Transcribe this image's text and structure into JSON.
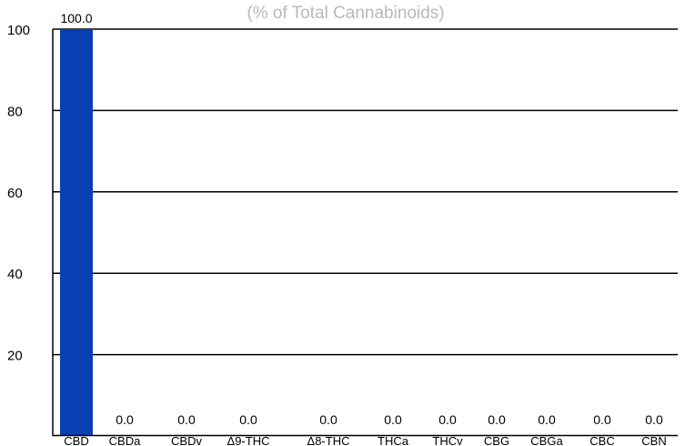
{
  "chart_data": {
    "type": "bar",
    "title": "",
    "subtitle": "(% of Total Cannabinoids)",
    "xlabel": "",
    "ylabel": "",
    "ylim": [
      0,
      100
    ],
    "yticks": [
      "20",
      "40",
      "60",
      "80",
      "100"
    ],
    "grid": true,
    "legend": "none",
    "categories": [
      "CBD",
      "CBDa",
      "CBDv",
      "Δ9-THC",
      "Δ8-THC",
      "THCa",
      "THCv",
      "CBG",
      "CBGa",
      "CBC",
      "CBN"
    ],
    "values": [
      100.0,
      0.0,
      0.0,
      0.0,
      0.0,
      0.0,
      0.0,
      0.0,
      0.0,
      0.0,
      0.0
    ],
    "value_labels": [
      "100.0",
      "0.0",
      "0.0",
      "0.0",
      "0.0",
      "0.0",
      "0.0",
      "0.0",
      "0.0",
      "0.0",
      "0.0"
    ],
    "bar_color": "#0a3fb4"
  }
}
